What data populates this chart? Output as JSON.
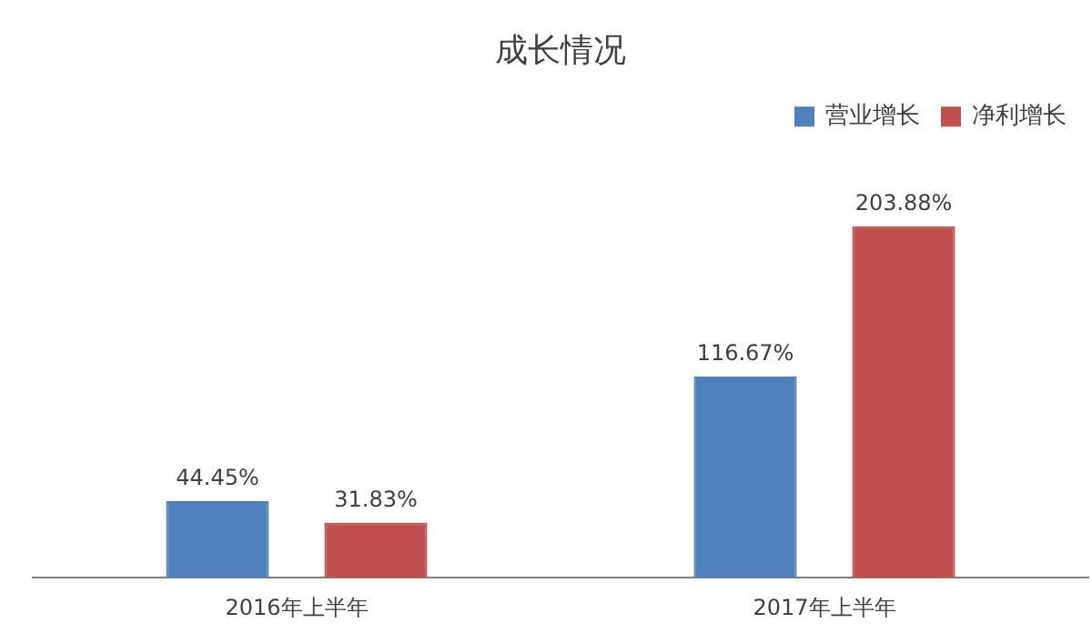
{
  "chart_data": {
    "type": "bar",
    "title": "成长情况",
    "categories": [
      "2016年上半年",
      "2017年上半年"
    ],
    "series": [
      {
        "name": "营业增长",
        "color": "#4f81bd",
        "values": [
          44.45,
          116.67
        ],
        "value_labels": [
          "44.45%",
          "116.67%"
        ]
      },
      {
        "name": "净利增长",
        "color": "#c0504d",
        "values": [
          31.83,
          203.88
        ],
        "value_labels": [
          "31.83%",
          "203.88%"
        ]
      }
    ],
    "legend": "top right",
    "grid": false
  }
}
